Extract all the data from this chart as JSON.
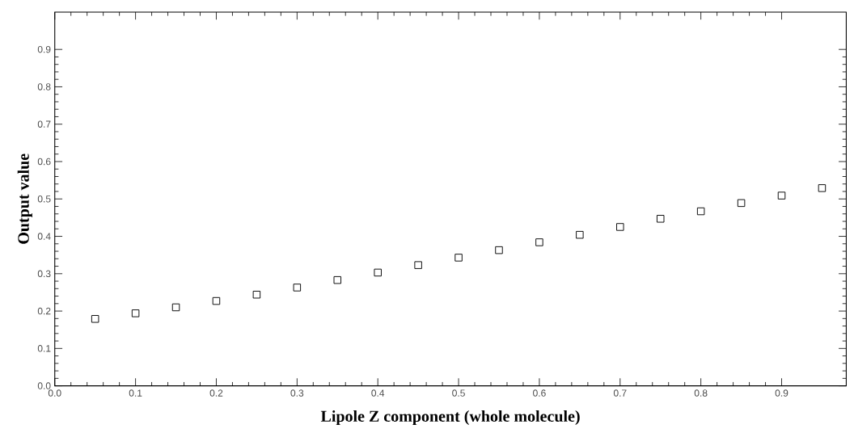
{
  "chart_data": {
    "type": "scatter",
    "xlabel": "Lipole Z component (whole molecule)",
    "ylabel": "Output value",
    "x": [
      0.05,
      0.1,
      0.15,
      0.2,
      0.25,
      0.3,
      0.35,
      0.4,
      0.45,
      0.5,
      0.55,
      0.6,
      0.65,
      0.7,
      0.75,
      0.8,
      0.85,
      0.9,
      0.95
    ],
    "series": [
      {
        "color": "#000000",
        "values": [
          0.179,
          0.194,
          0.21,
          0.227,
          0.244,
          0.263,
          0.283,
          0.303,
          0.323,
          0.343,
          0.363,
          0.384,
          0.404,
          0.425,
          0.447,
          0.467,
          0.489,
          0.509,
          0.529
        ]
      }
    ],
    "marker": "square",
    "xlim": [
      0,
      0.98
    ],
    "ylim": [
      0,
      1
    ],
    "xticks": [
      {
        "value": 0,
        "label": "0.0"
      },
      0.1,
      0.2,
      0.3,
      0.4,
      0.5,
      0.6,
      0.7,
      0.8,
      0.9
    ],
    "yticks": [
      {
        "value": 0,
        "label": "0.0"
      },
      0.1,
      0.2,
      0.3,
      0.4,
      0.5,
      0.6,
      0.7,
      0.8,
      0.9
    ]
  }
}
